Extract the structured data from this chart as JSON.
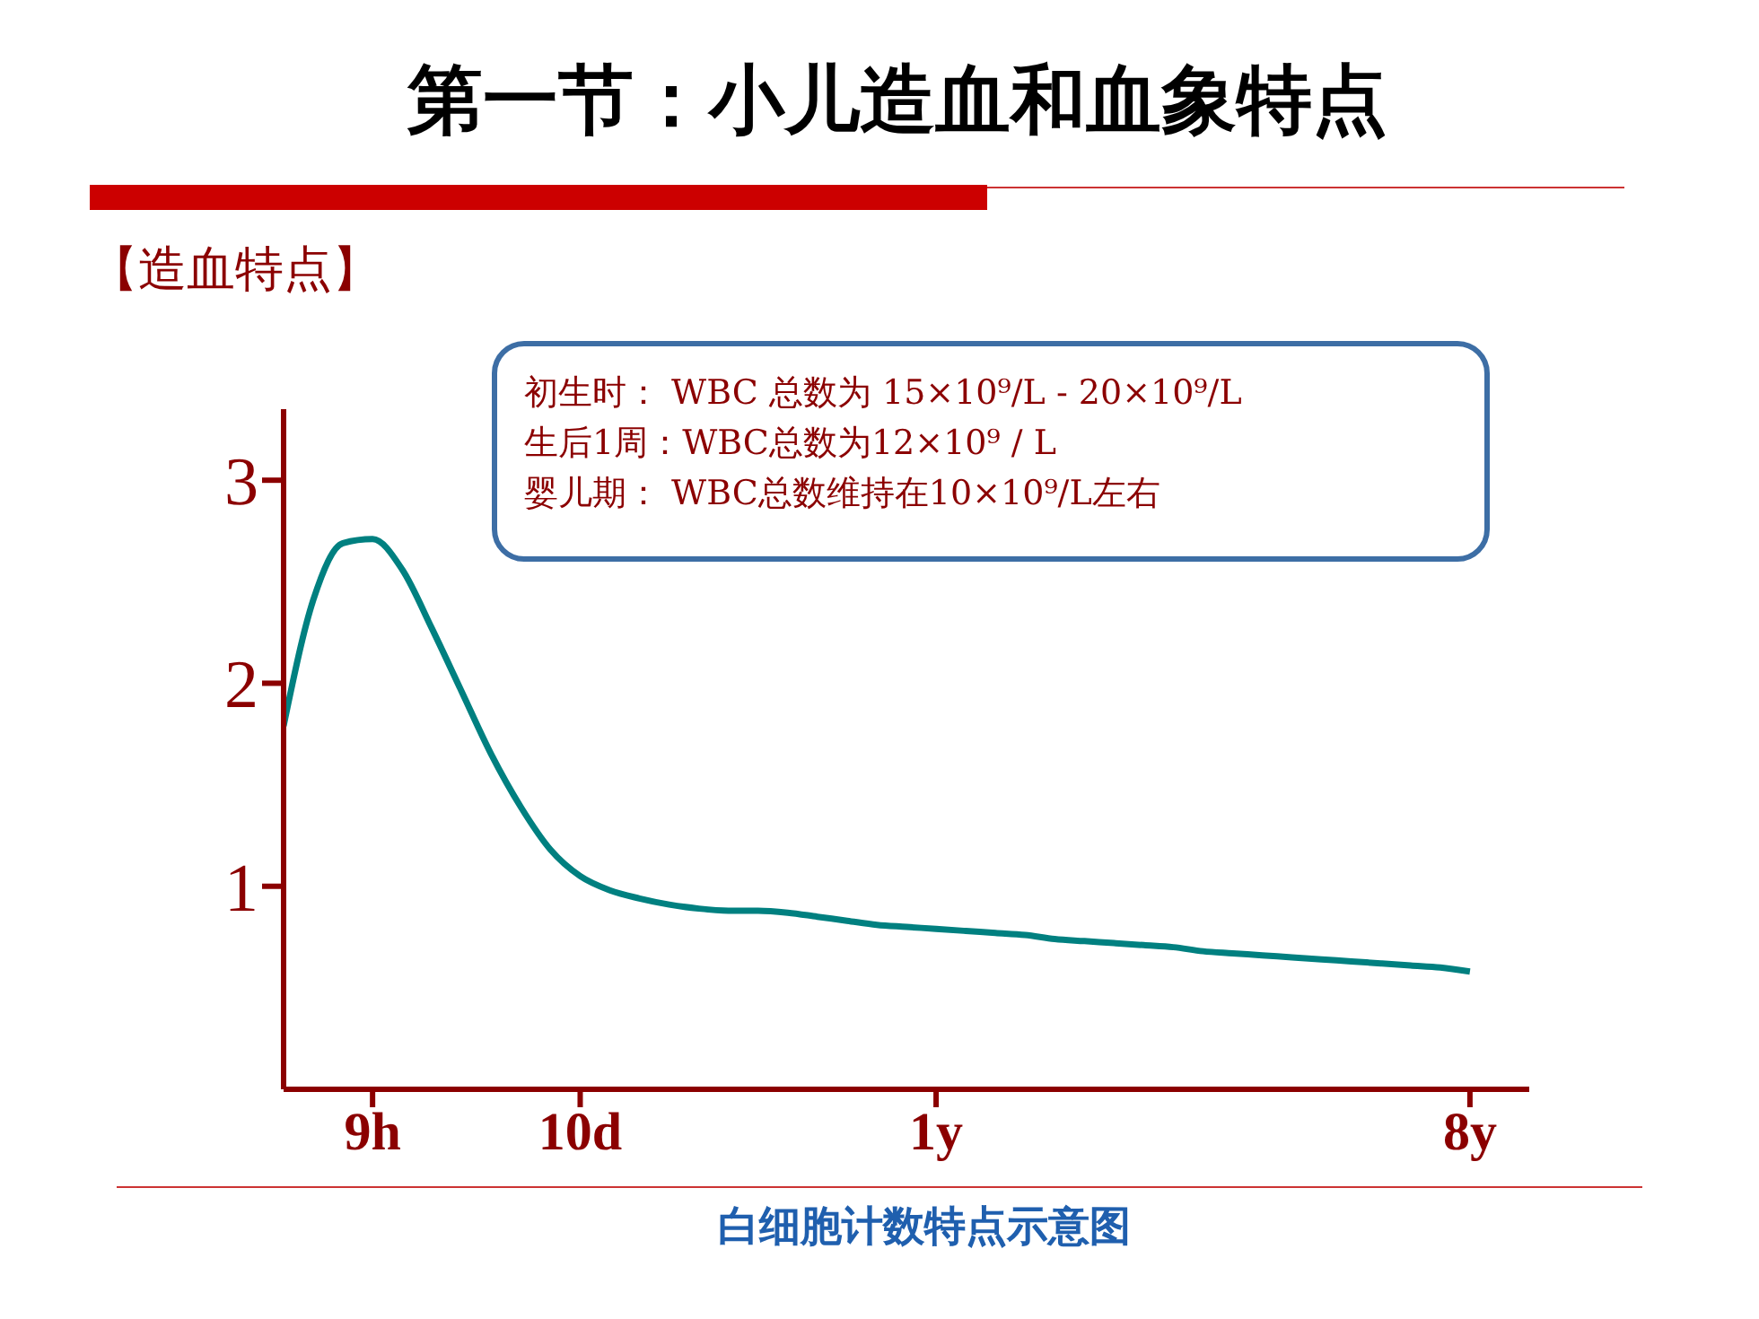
{
  "chart_data": {
    "type": "line",
    "title": "第一节：小儿造血和血象特点",
    "subtitle": "【造血特点】",
    "xlabel": "白细胞计数特点示意图",
    "annotations": [
      "初生时： WBC 总数为 15×10⁹/L - 20×10⁹/L",
      "生后1周：WBC总数为12×10⁹ / L",
      "婴儿期： WBC总数维持在10×10⁹/L左右"
    ],
    "categories": [
      null,
      null,
      null,
      "9h",
      null,
      null,
      null,
      null,
      null,
      null,
      "10d",
      null,
      null,
      null,
      null,
      null,
      null,
      null,
      null,
      null,
      null,
      null,
      "1y",
      null,
      null,
      null,
      null,
      null,
      null,
      null,
      null,
      null,
      null,
      null,
      null,
      null,
      null,
      null,
      null,
      null,
      "8y",
      null,
      null
    ],
    "series": [
      {
        "color": "#008080",
        "values": [
          1.79,
          2.41,
          2.69,
          2.71,
          2.56,
          2.27,
          1.96,
          1.65,
          1.39,
          1.18,
          1.05,
          0.98,
          0.94,
          0.91,
          0.89,
          0.88,
          0.88,
          0.87,
          0.85,
          0.83,
          0.81,
          0.8,
          0.79,
          0.78,
          0.77,
          0.76,
          0.74,
          0.73,
          0.72,
          0.71,
          0.7,
          0.68,
          0.67,
          0.66,
          0.65,
          0.64,
          0.63,
          0.62,
          0.61,
          0.6,
          0.58,
          null,
          null
        ]
      }
    ],
    "ylim": [
      0,
      3.35
    ],
    "yticks": [
      1,
      2,
      3
    ],
    "grid": false,
    "legend": false,
    "marker": "none",
    "line_style": "solid"
  }
}
